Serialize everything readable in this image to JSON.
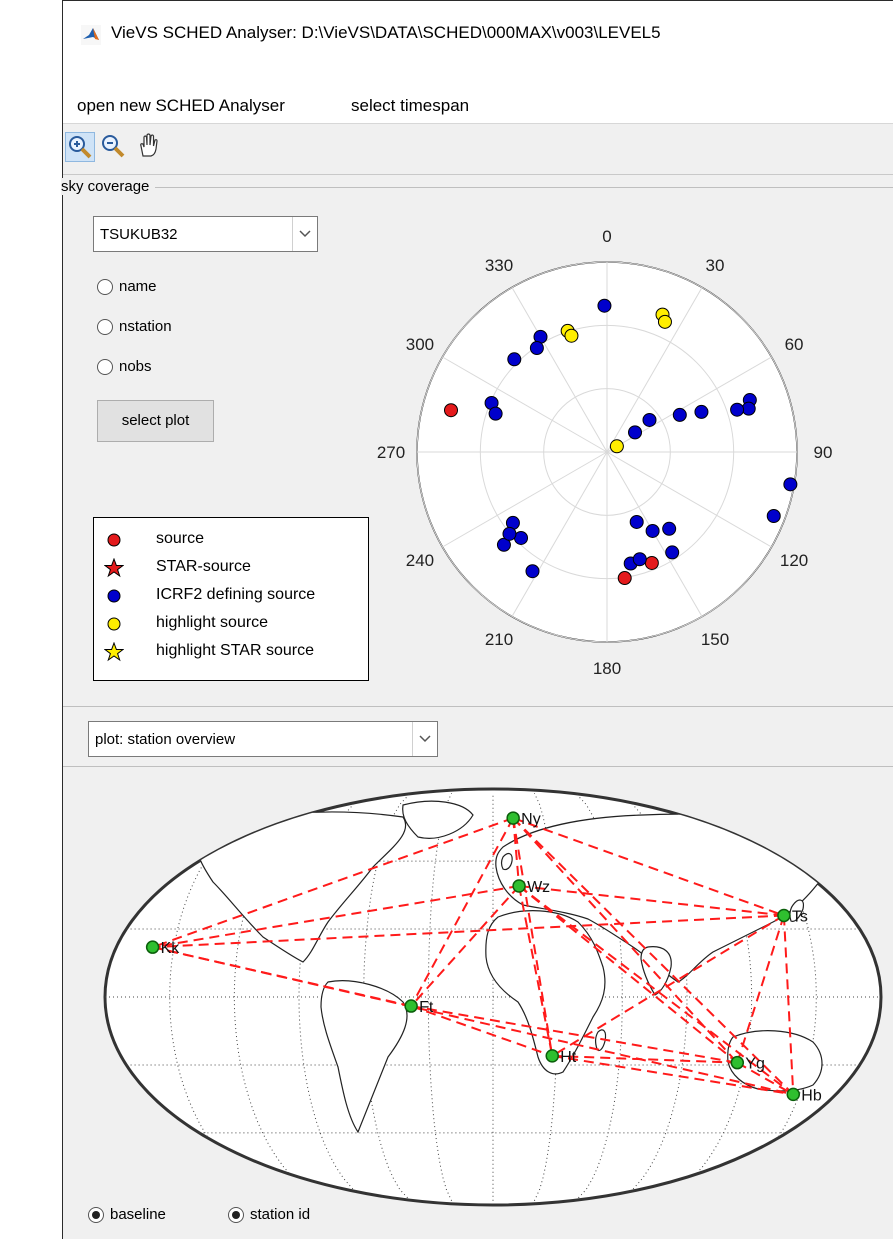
{
  "window": {
    "title": "VieVS SCHED Analyser: D:\\VieVS\\DATA\\SCHED\\000MAX\\v003\\LEVEL5",
    "icon": "matlab-icon"
  },
  "menu": [
    "open new SCHED Analyser",
    "select timespan"
  ],
  "toolbar": [
    {
      "icon": "zoom-in-icon",
      "active": true
    },
    {
      "icon": "zoom-out-icon",
      "active": false
    },
    {
      "icon": "pan-hand-icon",
      "active": false
    }
  ],
  "sky_panel": {
    "title": "sky coverage",
    "station_select": "TSUKUB32",
    "radios": [
      "name",
      "nstation",
      "nobs"
    ],
    "select_plot_label": "select plot",
    "legend": [
      {
        "label": "source",
        "marker": "circle",
        "color": "#e41a1c"
      },
      {
        "label": "STAR-source",
        "marker": "star",
        "color": "#e41a1c"
      },
      {
        "label": "ICRF2 defining source",
        "marker": "circle",
        "color": "#0000cc"
      },
      {
        "label": "highlight source",
        "marker": "circle",
        "color": "#ffee00"
      },
      {
        "label": "highlight STAR source",
        "marker": "star",
        "color": "#ffee00"
      }
    ],
    "azimuth_labels": [
      "0",
      "30",
      "60",
      "90",
      "120",
      "150",
      "180",
      "210",
      "240",
      "270",
      "300",
      "330"
    ]
  },
  "chart_data": {
    "type": "scatter",
    "coordinate_system": "polar (azimuth deg, clockwise from north; radius = zenith distance)",
    "series": [
      {
        "name": "source",
        "color": "#e41a1c",
        "points": [
          [
            -75,
            0.85
          ],
          [
            158,
            0.63
          ],
          [
            172,
            0.67
          ]
        ]
      },
      {
        "name": "ICRF2 defining source",
        "color": "#0000cc",
        "points": [
          [
            -1,
            0.77
          ],
          [
            -30,
            0.7
          ],
          [
            -34,
            0.66
          ],
          [
            -45,
            0.69
          ],
          [
            -67,
            0.66
          ],
          [
            -71,
            0.62
          ],
          [
            55,
            0.18
          ],
          [
            53,
            0.28
          ],
          [
            63,
            0.43
          ],
          [
            67,
            0.54
          ],
          [
            70,
            0.8
          ],
          [
            73,
            0.78
          ],
          [
            72,
            0.72
          ],
          [
            100,
            0.98
          ],
          [
            111,
            0.94
          ],
          [
            150,
            0.48
          ],
          [
            157,
            0.4
          ],
          [
            147,
            0.63
          ],
          [
            141,
            0.52
          ],
          [
            168,
            0.6
          ],
          [
            163,
            0.59
          ],
          [
            212,
            0.74
          ],
          [
            228,
            0.73
          ],
          [
            225,
            0.64
          ],
          [
            233,
            0.62
          ],
          [
            230,
            0.67
          ]
        ]
      },
      {
        "name": "highlight source",
        "color": "#ffee00",
        "points": [
          [
            -18,
            0.67
          ],
          [
            -17,
            0.64
          ],
          [
            22,
            0.78
          ],
          [
            24,
            0.75
          ],
          [
            60,
            0.06
          ]
        ]
      }
    ],
    "azimuth_ticks": [
      0,
      30,
      60,
      90,
      120,
      150,
      180,
      210,
      240,
      270,
      300,
      330
    ],
    "rings": 3
  },
  "plot_select": "plot: station overview",
  "map": {
    "stations": [
      {
        "id": "Ny",
        "lon": 12,
        "lat": 79
      },
      {
        "id": "Wz",
        "lon": 13,
        "lat": 49
      },
      {
        "id": "Ts",
        "lon": 140,
        "lat": 36
      },
      {
        "id": "Kk",
        "lon": -160,
        "lat": 22
      },
      {
        "id": "Ft",
        "lon": -38,
        "lat": -4
      },
      {
        "id": "Ht",
        "lon": 28,
        "lat": -26
      },
      {
        "id": "Yg",
        "lon": 116,
        "lat": -29
      },
      {
        "id": "Hb",
        "lon": 147,
        "lat": -43
      }
    ]
  },
  "bottom_radios": [
    "baseline",
    "station id"
  ]
}
